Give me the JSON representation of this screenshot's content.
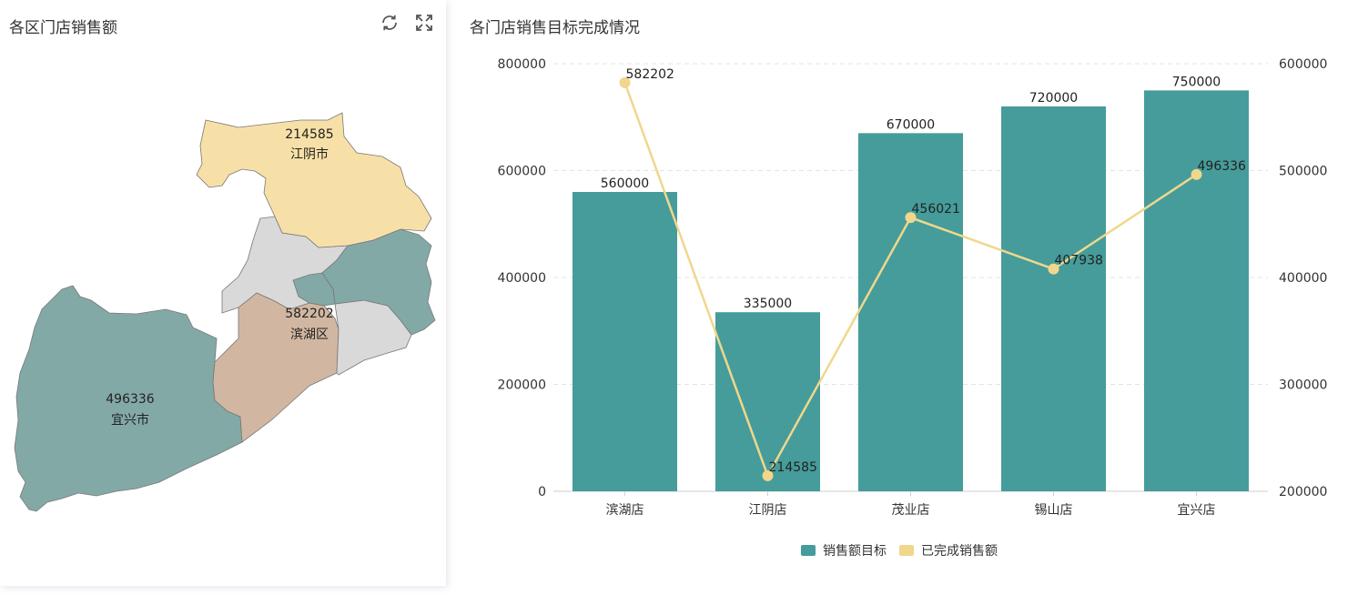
{
  "left_panel": {
    "title": "各区门店销售额",
    "icons": [
      "refresh-icon",
      "fullscreen-icon"
    ],
    "regions": [
      {
        "id": "jiangyin",
        "name": "江阴市",
        "value": "214585",
        "labeled": true,
        "color": "#f7e0a7"
      },
      {
        "id": "binhu",
        "name": "滨湖区",
        "value": "582202",
        "labeled": true,
        "color": "#d1b7a2"
      },
      {
        "id": "yixing",
        "name": "宜兴市",
        "value": "496336",
        "labeled": true,
        "color": "#83a9a7"
      },
      {
        "id": "xishan",
        "name": "",
        "value": "",
        "labeled": false,
        "color": "#83a9a7"
      },
      {
        "id": "huishan",
        "name": "",
        "value": "",
        "labeled": false,
        "color": "#d9d9d9"
      },
      {
        "id": "xinwu",
        "name": "",
        "value": "",
        "labeled": false,
        "color": "#d9d9d9"
      },
      {
        "id": "liangxi",
        "name": "",
        "value": "",
        "labeled": false,
        "color": "#83a9a7"
      }
    ]
  },
  "right_panel": {
    "title": "各门店销售目标完成情况"
  },
  "chart_data": {
    "type": "bar",
    "title": "各门店销售目标完成情况",
    "categories": [
      "滨湖店",
      "江阴店",
      "茂业店",
      "锡山店",
      "宜兴店"
    ],
    "series": [
      {
        "name": "销售额目标",
        "type": "bar",
        "axis": "left",
        "color": "#459c9b",
        "values": [
          560000,
          335000,
          670000,
          720000,
          750000
        ]
      },
      {
        "name": "已完成销售额",
        "type": "line",
        "axis": "right",
        "color": "#f0d78c",
        "values": [
          582202,
          214585,
          456021,
          407938,
          496336
        ]
      }
    ],
    "y_left": {
      "min": 0,
      "max": 800000,
      "ticks": [
        "0",
        "200000",
        "400000",
        "600000",
        "800000"
      ]
    },
    "y_right": {
      "min": 200000,
      "max": 600000,
      "ticks": [
        "200000",
        "300000",
        "400000",
        "500000",
        "600000"
      ]
    },
    "grid": true,
    "legend_position": "bottom-center"
  }
}
